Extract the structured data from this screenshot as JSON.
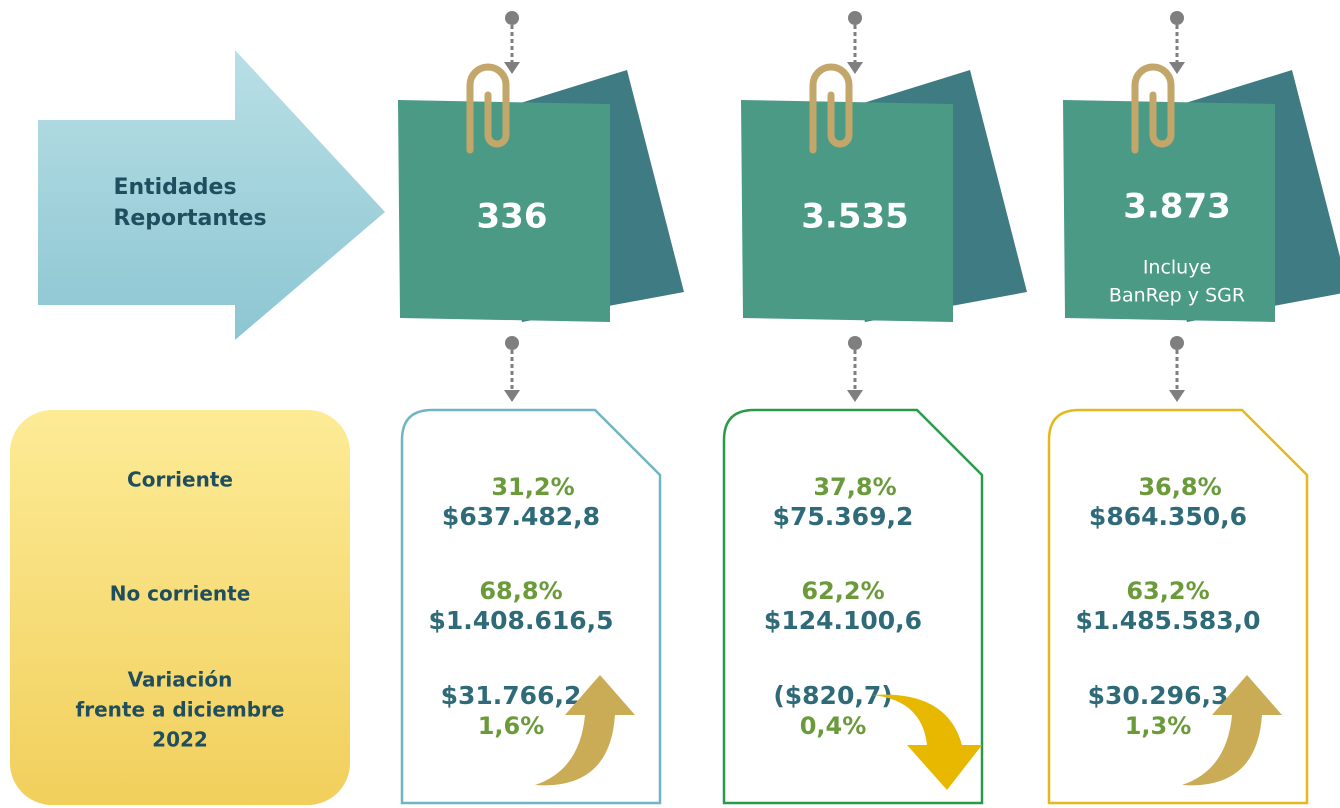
{
  "entities_label": [
    "Entidades",
    "Reportantes"
  ],
  "columns": [
    {
      "count": "336"
    },
    {
      "count": "3.535"
    },
    {
      "count": "3.873",
      "note": [
        "Incluye",
        "BanRep y SGR"
      ]
    }
  ],
  "row_labels": {
    "corriente": "Corriente",
    "no_corriente": "No corriente",
    "variacion": [
      "Variación",
      "frente a diciembre",
      "2022"
    ]
  },
  "cards": [
    {
      "corriente_pct": "31,2%",
      "corriente_value": "$637.482,8",
      "no_corriente_pct": "68,8%",
      "no_corriente_value": "$1.408.616,5",
      "variacion_value": "$31.766,2",
      "variacion_pct": "1,6%",
      "trend": "up",
      "border": "#6fb5c4"
    },
    {
      "corriente_pct": "37,8%",
      "corriente_value": "$75.369,2",
      "no_corriente_pct": "62,2%",
      "no_corriente_value": "$124.100,6",
      "variacion_value": "($820,7)",
      "variacion_pct": "0,4%",
      "trend": "down",
      "border": "#2a9a4a"
    },
    {
      "corriente_pct": "36,8%",
      "corriente_value": "$864.350,6",
      "no_corriente_pct": "63,2%",
      "no_corriente_value": "$1.485.583,0",
      "variacion_value": "$30.296,3",
      "variacion_pct": "1,3%",
      "trend": "up",
      "border": "#e5b820"
    }
  ]
}
